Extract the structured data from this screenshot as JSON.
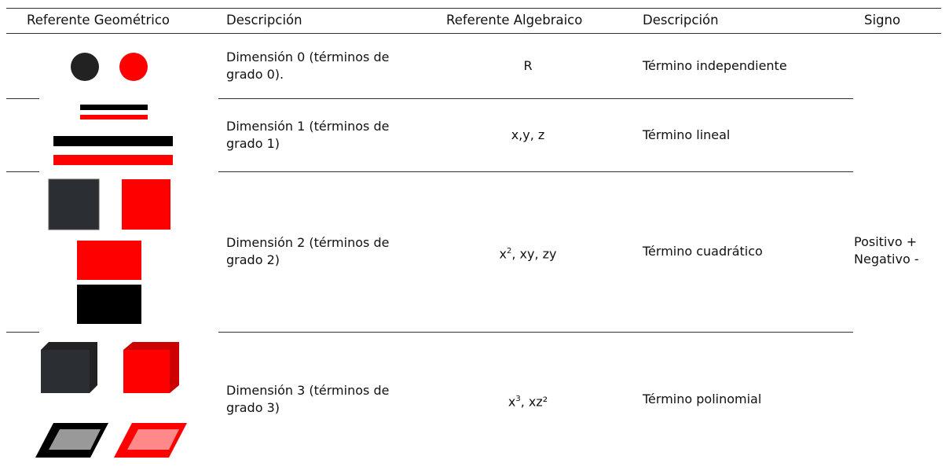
{
  "table": {
    "header": [
      "Referente Geométrico",
      "Descripción",
      "Referente Algebraico",
      "Descripción",
      "Signo"
    ],
    "rows": [
      {
        "description": "Dimensión 0 (términos de grado 0).",
        "algebraic": {
          "base": "R"
        },
        "term": "Término independiente"
      },
      {
        "description": "Dimensión 1 (términos de grado 1)",
        "algebraic": {
          "base": "x,y, z"
        },
        "term": "Término lineal"
      },
      {
        "description": "Dimensión 2 (términos de grado 2)",
        "algebraic": {
          "base": "x",
          "sup": "2",
          "rest": ", xy, zy"
        },
        "term": "Término cuadrático"
      },
      {
        "description": "Dimensión 3 (términos de grado 3)",
        "algebraic": {
          "base": "x",
          "sup": "3",
          "rest": ", xz²"
        },
        "term": "Término polinomial"
      }
    ],
    "sign": [
      "Positivo +",
      "Negativo -"
    ]
  }
}
